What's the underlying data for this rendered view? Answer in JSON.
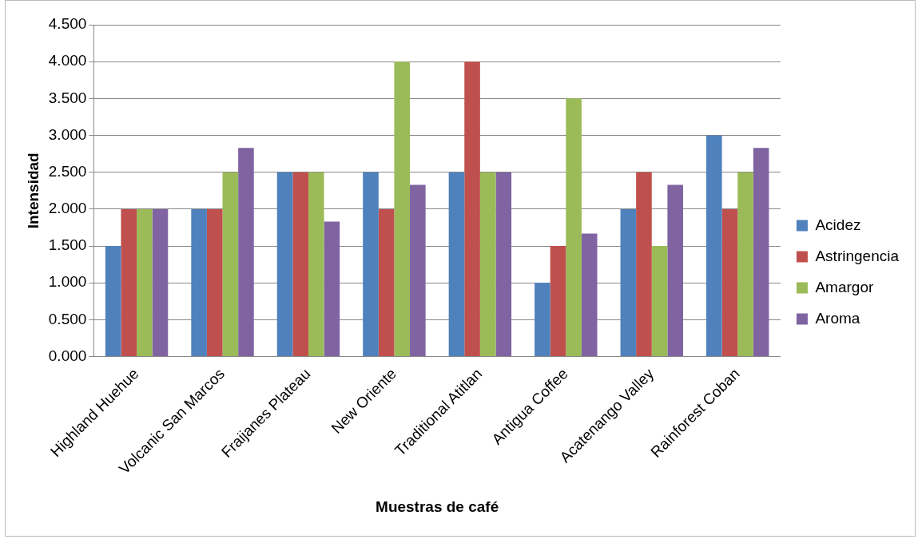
{
  "chart_data": {
    "type": "bar",
    "xlabel": "Muestras de café",
    "ylabel": "Intensidad",
    "categories": [
      "Highland Huehue",
      "Volcanic San Marcos",
      "Fraijanes Plateau",
      "New Oriente",
      "Traditional Atitlan",
      "Antigua Coffee",
      "Acatenango Valley",
      "Rainforest Coban"
    ],
    "series": [
      {
        "name": "Acidez",
        "color": "#4f81bd",
        "values": [
          1.5,
          2,
          2.5,
          2.5,
          2.5,
          1,
          2,
          3
        ]
      },
      {
        "name": "Astringencia",
        "color": "#c0504d",
        "values": [
          2,
          2,
          2.5,
          2,
          4,
          1.5,
          2.5,
          2
        ]
      },
      {
        "name": "Amargor",
        "color": "#9bbb59",
        "values": [
          2,
          2.5,
          2.5,
          4,
          2.5,
          3.5,
          1.5,
          2.5
        ]
      },
      {
        "name": "Aroma",
        "color": "#8064a2",
        "values": [
          2,
          2.83,
          1.83,
          2.33,
          2.5,
          1.67,
          2.33,
          2.83
        ]
      }
    ],
    "ylim": [
      0,
      4.5
    ],
    "yticks": [
      {
        "value": 0,
        "label": "0.000"
      },
      {
        "value": 0.5,
        "label": "0.500"
      },
      {
        "value": 1,
        "label": "1.000"
      },
      {
        "value": 1.5,
        "label": "1.500"
      },
      {
        "value": 2,
        "label": "2.000"
      },
      {
        "value": 2.5,
        "label": "2.500"
      },
      {
        "value": 3,
        "label": "3.000"
      },
      {
        "value": 3.5,
        "label": "3.500"
      },
      {
        "value": 4,
        "label": "4.000"
      },
      {
        "value": 4.5,
        "label": "4.500"
      }
    ],
    "grid": "y",
    "legend": "right"
  }
}
